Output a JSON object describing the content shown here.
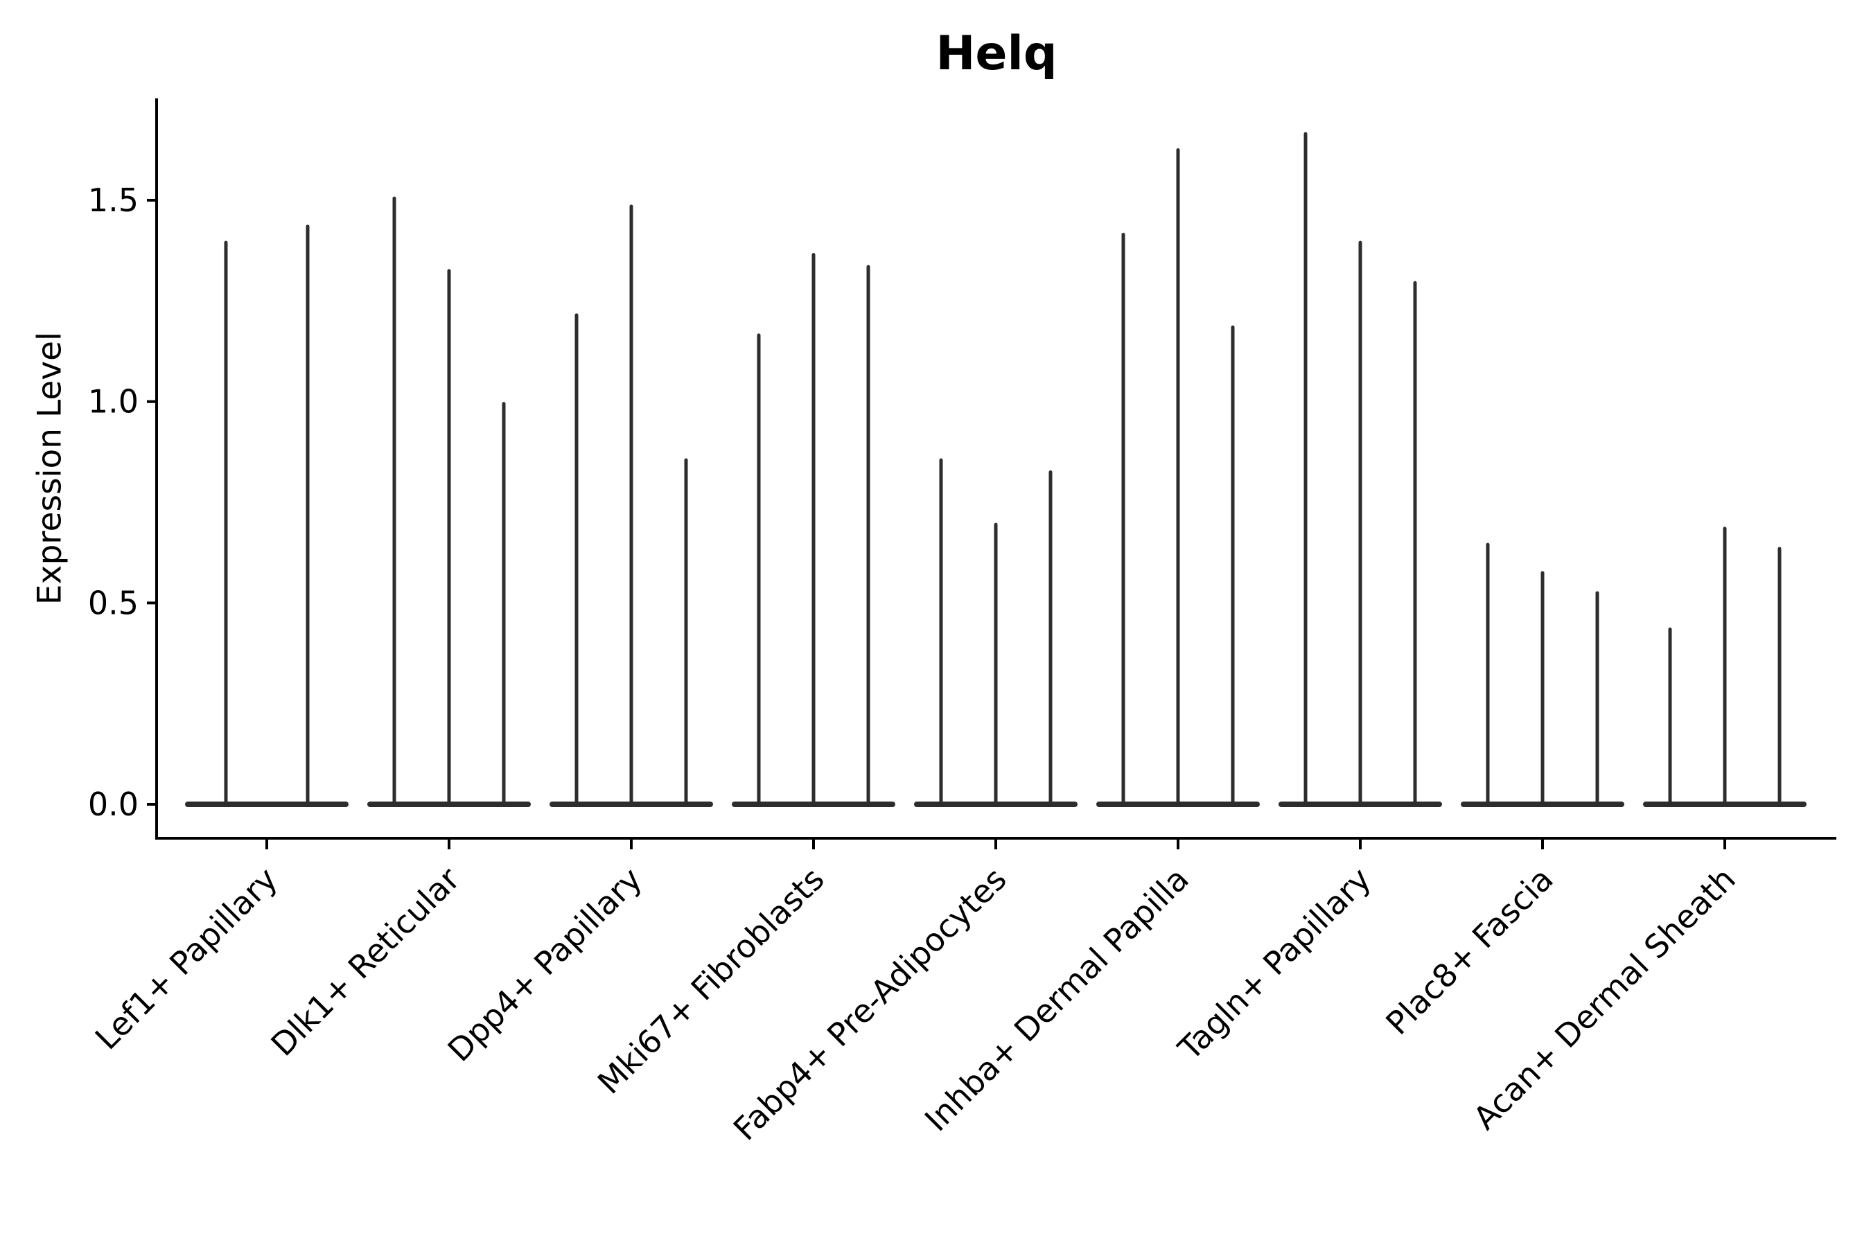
{
  "chart_data": {
    "type": "violin",
    "title": "Helq",
    "ylabel": "Expression Level",
    "xlabel": "",
    "ytick_labels": [
      "0.0",
      "0.5",
      "1.0",
      "1.5"
    ],
    "ytick_values": [
      0.0,
      0.5,
      1.0,
      1.5
    ],
    "ylim": [
      -0.084,
      1.753
    ],
    "grid": false,
    "legend": "none",
    "xtick_rotation": 45,
    "description": "Violin plot of Helq expression; violins are near-zero-width spikes with flat bases at 0. Each category shows 2-3 violins; values are the max expression (spike top) per violin.",
    "groups": [
      {
        "label": "Lef1+ Papillary",
        "violins": [
          1.4,
          1.44
        ]
      },
      {
        "label": "Dlk1+ Reticular",
        "violins": [
          1.51,
          1.33,
          1.0
        ]
      },
      {
        "label": "Dpp4+ Papillary",
        "violins": [
          1.22,
          1.49,
          0.86
        ]
      },
      {
        "label": "Mki67+ Fibroblasts",
        "violins": [
          1.17,
          1.37,
          1.34
        ]
      },
      {
        "label": "Fabp4+ Pre-Adipocytes",
        "violins": [
          0.86,
          0.7,
          0.83
        ]
      },
      {
        "label": "Inhba+ Dermal Papilla",
        "violins": [
          1.42,
          1.63,
          1.19
        ]
      },
      {
        "label": "Tagln+ Papillary",
        "violins": [
          1.67,
          1.4,
          1.3
        ]
      },
      {
        "label": "Plac8+ Fascia",
        "violins": [
          0.65,
          0.58,
          0.53
        ]
      },
      {
        "label": "Acan+ Dermal Sheath",
        "violins": [
          0.44,
          0.69,
          0.64
        ]
      }
    ],
    "colors": {
      "violin": "#2d2d2d",
      "axis": "#000000",
      "text": "#000000",
      "background": "#ffffff"
    }
  }
}
